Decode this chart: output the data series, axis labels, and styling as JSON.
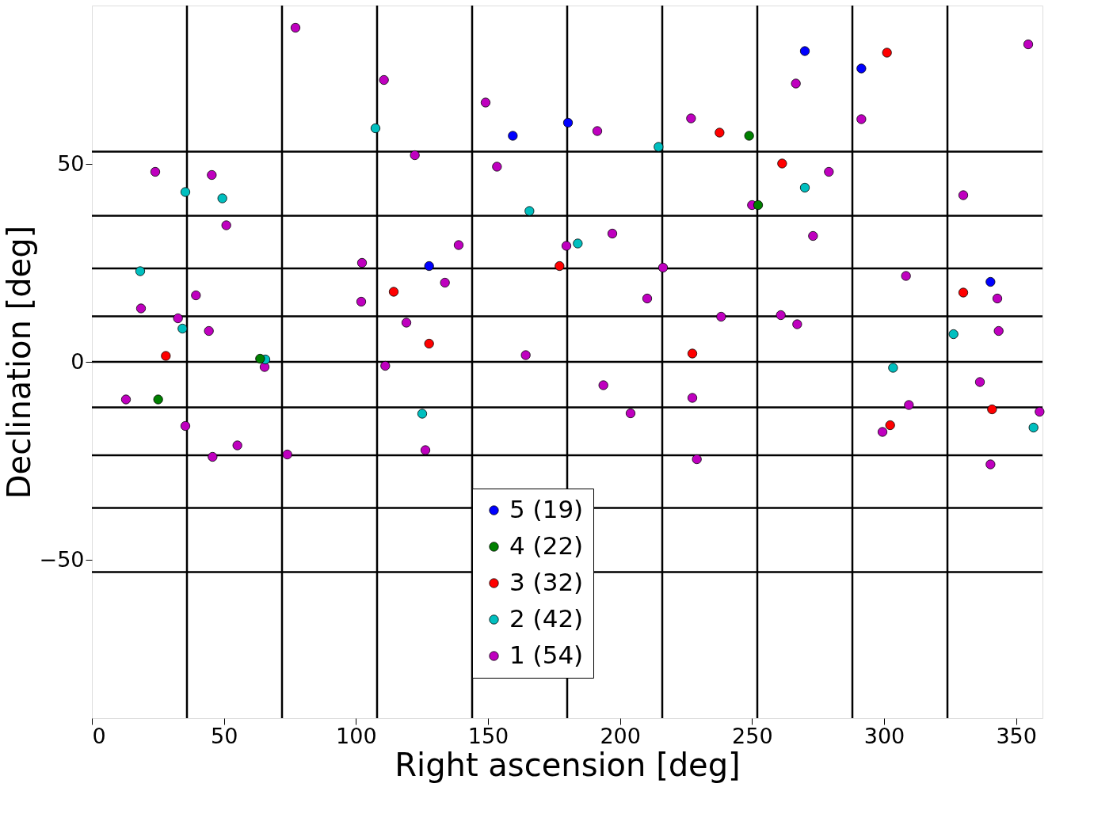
{
  "chart_data": {
    "type": "scatter",
    "xlabel": "Right ascension [deg]",
    "ylabel": "Declination [deg]",
    "xlim": [
      0,
      360
    ],
    "ylim": [
      -90,
      90
    ],
    "xticks": [
      0,
      50,
      100,
      150,
      200,
      250,
      300,
      350
    ],
    "yticks": [
      -50,
      0,
      50
    ],
    "grid": false,
    "legend": "bottom",
    "marker": "circle",
    "ref_lines": [
      {
        "axis": "x",
        "value": 36,
        "color": "#000000"
      },
      {
        "axis": "x",
        "value": 72,
        "color": "#000000"
      },
      {
        "axis": "x",
        "value": 108,
        "color": "#000000"
      },
      {
        "axis": "x",
        "value": 144,
        "color": "#000000"
      },
      {
        "axis": "x",
        "value": 180,
        "color": "#000000"
      },
      {
        "axis": "x",
        "value": 216,
        "color": "#000000"
      },
      {
        "axis": "x",
        "value": 252,
        "color": "#000000"
      },
      {
        "axis": "x",
        "value": 288,
        "color": "#000000"
      },
      {
        "axis": "x",
        "value": 324,
        "color": "#000000"
      },
      {
        "axis": "y",
        "value": 53.1,
        "color": "#000000"
      },
      {
        "axis": "y",
        "value": 36.9,
        "color": "#000000"
      },
      {
        "axis": "y",
        "value": 23.6,
        "color": "#000000"
      },
      {
        "axis": "y",
        "value": 11.5,
        "color": "#000000"
      },
      {
        "axis": "y",
        "value": 0,
        "color": "#000000"
      },
      {
        "axis": "y",
        "value": -11.5,
        "color": "#000000"
      },
      {
        "axis": "y",
        "value": -23.6,
        "color": "#000000"
      },
      {
        "axis": "y",
        "value": -36.9,
        "color": "#000000"
      },
      {
        "axis": "y",
        "value": -53.1,
        "color": "#000000"
      }
    ],
    "series": [
      {
        "name": "5 (19)",
        "color": "#0000ff",
        "x": [
          159.4,
          180.3,
          270,
          291.4,
          127.7,
          340.3
        ],
        "values": [
          57.1,
          60.4,
          78.5,
          74.1,
          24.2,
          20.2
        ]
      },
      {
        "name": "4 (22)",
        "color": "#008000",
        "x": [
          248.9,
          252.3,
          63.7,
          25.1
        ],
        "values": [
          57.1,
          39.6,
          0.8,
          -9.5
        ]
      },
      {
        "name": "3 (32)",
        "color": "#ff0000",
        "x": [
          301.1,
          237.7,
          261.4,
          177.1,
          114.3,
          330,
          28,
          127.7,
          227.4,
          340.9,
          302.3
        ],
        "values": [
          78.1,
          57.9,
          50.1,
          24.2,
          17.7,
          17.5,
          1.5,
          4.6,
          2.1,
          -12,
          -16
        ]
      },
      {
        "name": "2 (42)",
        "color": "#00bfbf",
        "x": [
          107.4,
          214.6,
          35.4,
          49.4,
          165.7,
          270,
          184,
          18.3,
          34.3,
          65.7,
          125.1,
          303.4,
          326.3,
          356.6
        ],
        "values": [
          59.0,
          54.3,
          42.9,
          41.3,
          38.1,
          44,
          29.9,
          22.9,
          8.4,
          0.6,
          -13.1,
          -1.5,
          7,
          -16.6
        ]
      },
      {
        "name": "1 (54)",
        "color": "#bf00bf",
        "x": [
          77.1,
          110.6,
          149.1,
          226.9,
          266.6,
          291.4,
          354.6,
          191.4,
          153.4,
          122.3,
          24,
          45.4,
          50.9,
          279.1,
          250,
          330,
          197.1,
          179.7,
          138.9,
          273.1,
          102.3,
          216.3,
          39.4,
          18.6,
          32.6,
          44.3,
          102,
          133.7,
          119.1,
          210.3,
          238.3,
          260.9,
          267.1,
          308.3,
          342.9,
          343.4,
          164.3,
          65.4,
          111.1,
          12.9,
          193.7,
          227.4,
          204,
          309.4,
          336.3,
          358.9,
          35.4,
          55.1,
          45.7,
          74,
          126.3,
          229.1,
          299.4,
          340.3
        ],
        "values": [
          84.4,
          71.2,
          65.5,
          61.5,
          70.3,
          61.3,
          80.2,
          58.3,
          49.3,
          52.2,
          48,
          47.2,
          34.5,
          48,
          39.6,
          42.1,
          32.4,
          29.3,
          29.5,
          31.8,
          25,
          23.8,
          16.8,
          13.5,
          11,
          7.8,
          15.2,
          20,
          9.9,
          16,
          11.4,
          11.8,
          9.5,
          21.7,
          16,
          7.8,
          1.7,
          -1.3,
          -1,
          -9.5,
          -5.9,
          -9.1,
          -13,
          -10.9,
          -5.1,
          -12.6,
          -16.2,
          -21.1,
          -24,
          -23.4,
          -22.3,
          -24.6,
          -17.7,
          -25.9
        ]
      }
    ]
  }
}
